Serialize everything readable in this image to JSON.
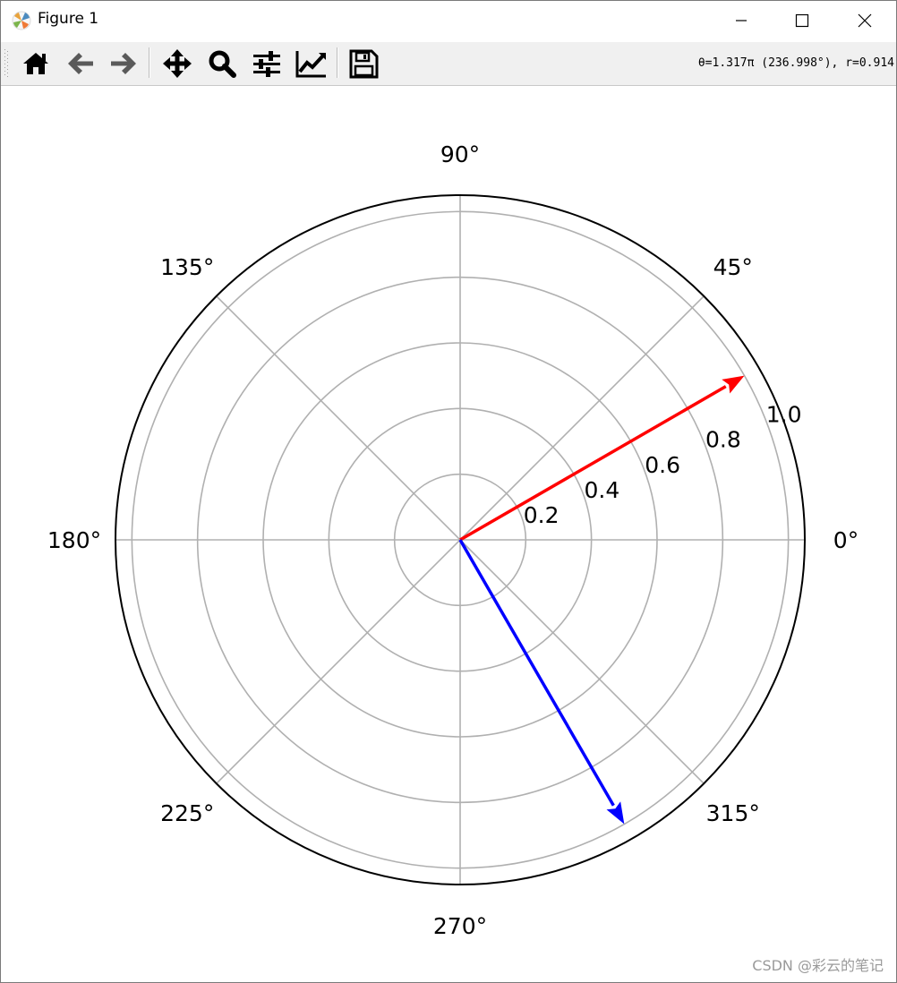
{
  "window": {
    "title": "Figure 1",
    "minimize_label": "Minimize",
    "maximize_label": "Maximize",
    "close_label": "Close"
  },
  "toolbar": {
    "buttons": [
      {
        "icon": "home-icon",
        "label": "Home"
      },
      {
        "icon": "back-arrow-icon",
        "label": "Back"
      },
      {
        "icon": "forward-arrow-icon",
        "label": "Forward"
      },
      {
        "icon": "pan-icon",
        "label": "Pan"
      },
      {
        "icon": "zoom-icon",
        "label": "Zoom"
      },
      {
        "icon": "subplots-icon",
        "label": "Configure subplots"
      },
      {
        "icon": "edit-curves-icon",
        "label": "Edit axis"
      },
      {
        "icon": "save-icon",
        "label": "Save"
      }
    ],
    "coords_readout": "θ=1.317π (236.998°), r=0.914"
  },
  "chart_data": {
    "type": "polar",
    "r_ticks": [
      "0.2",
      "0.4",
      "0.6",
      "0.8",
      "1.0"
    ],
    "r_values": [
      0.2,
      0.4,
      0.6,
      0.8,
      1.0
    ],
    "rlim": [
      0,
      1.05
    ],
    "theta_ticks": [
      "0°",
      "45°",
      "90°",
      "135°",
      "180°",
      "225°",
      "270°",
      "315°"
    ],
    "theta_values": [
      0,
      45,
      90,
      135,
      180,
      225,
      270,
      315
    ],
    "grid": true,
    "arrows": [
      {
        "color": "#ff0000",
        "theta_deg": 30,
        "r": 1.0
      },
      {
        "color": "#0000ff",
        "theta_deg": -60,
        "r": 1.0
      }
    ]
  },
  "watermark": "CSDN @彩云的笔记",
  "colors": {
    "grid": "#b0b0b0",
    "spine": "#000000",
    "toolbar_bg": "#f0f0f0"
  }
}
